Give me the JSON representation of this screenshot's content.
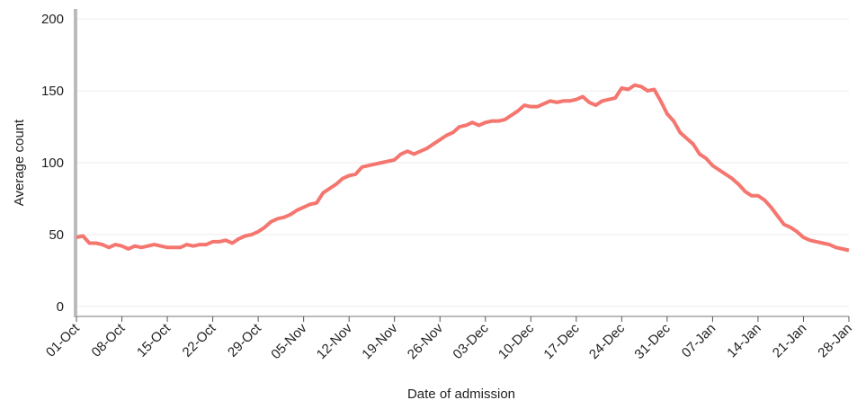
{
  "chart_data": {
    "type": "line",
    "x_label": "Date of admission",
    "y_label": "Average count",
    "categories": [
      "01-Oct",
      null,
      null,
      null,
      null,
      null,
      null,
      "08-Oct",
      null,
      null,
      null,
      null,
      null,
      null,
      "15-Oct",
      null,
      null,
      null,
      null,
      null,
      null,
      "22-Oct",
      null,
      null,
      null,
      null,
      null,
      null,
      "29-Oct",
      null,
      null,
      null,
      null,
      null,
      null,
      "05-Nov",
      null,
      null,
      null,
      null,
      null,
      null,
      "12-Nov",
      null,
      null,
      null,
      null,
      null,
      null,
      "19-Nov",
      null,
      null,
      null,
      null,
      null,
      null,
      "26-Nov",
      null,
      null,
      null,
      null,
      null,
      null,
      "03-Dec",
      null,
      null,
      null,
      null,
      null,
      null,
      "10-Dec",
      null,
      null,
      null,
      null,
      null,
      null,
      "17-Dec",
      null,
      null,
      null,
      null,
      null,
      null,
      "24-Dec",
      null,
      null,
      null,
      null,
      null,
      null,
      "31-Dec",
      null,
      null,
      null,
      null,
      null,
      null,
      "07-Jan",
      null,
      null,
      null,
      null,
      null,
      null,
      "14-Jan",
      null,
      null,
      null,
      null,
      null,
      null,
      "21-Jan",
      null,
      null,
      null,
      null,
      null,
      null,
      "28-Jan"
    ],
    "series": [
      {
        "name": "Average count",
        "color": "#f4766f",
        "values": [
          48,
          49,
          44,
          44,
          43,
          41,
          43,
          42,
          40,
          42,
          41,
          42,
          43,
          42,
          41,
          41,
          41,
          43,
          42,
          43,
          43,
          45,
          45,
          46,
          44,
          47,
          49,
          50,
          52,
          55,
          59,
          61,
          62,
          64,
          67,
          69,
          71,
          72,
          79,
          82,
          85,
          89,
          91,
          92,
          97,
          98,
          99,
          100,
          101,
          102,
          106,
          108,
          106,
          108,
          110,
          113,
          116,
          119,
          121,
          125,
          126,
          128,
          126,
          128,
          129,
          129,
          130,
          133,
          136,
          140,
          139,
          139,
          141,
          143,
          142,
          143,
          143,
          144,
          146,
          142,
          140,
          143,
          144,
          145,
          152,
          151,
          154,
          153,
          150,
          151,
          143,
          134,
          129,
          121,
          117,
          113,
          106,
          103,
          98,
          95,
          92,
          89,
          85,
          80,
          77,
          77,
          74,
          69,
          63,
          57,
          55,
          52,
          48,
          46,
          45,
          44,
          43,
          41,
          40,
          39
        ]
      }
    ],
    "ylim": [
      -7,
      207
    ],
    "yticks": [
      0,
      50,
      100,
      150,
      200
    ],
    "grid": true
  }
}
